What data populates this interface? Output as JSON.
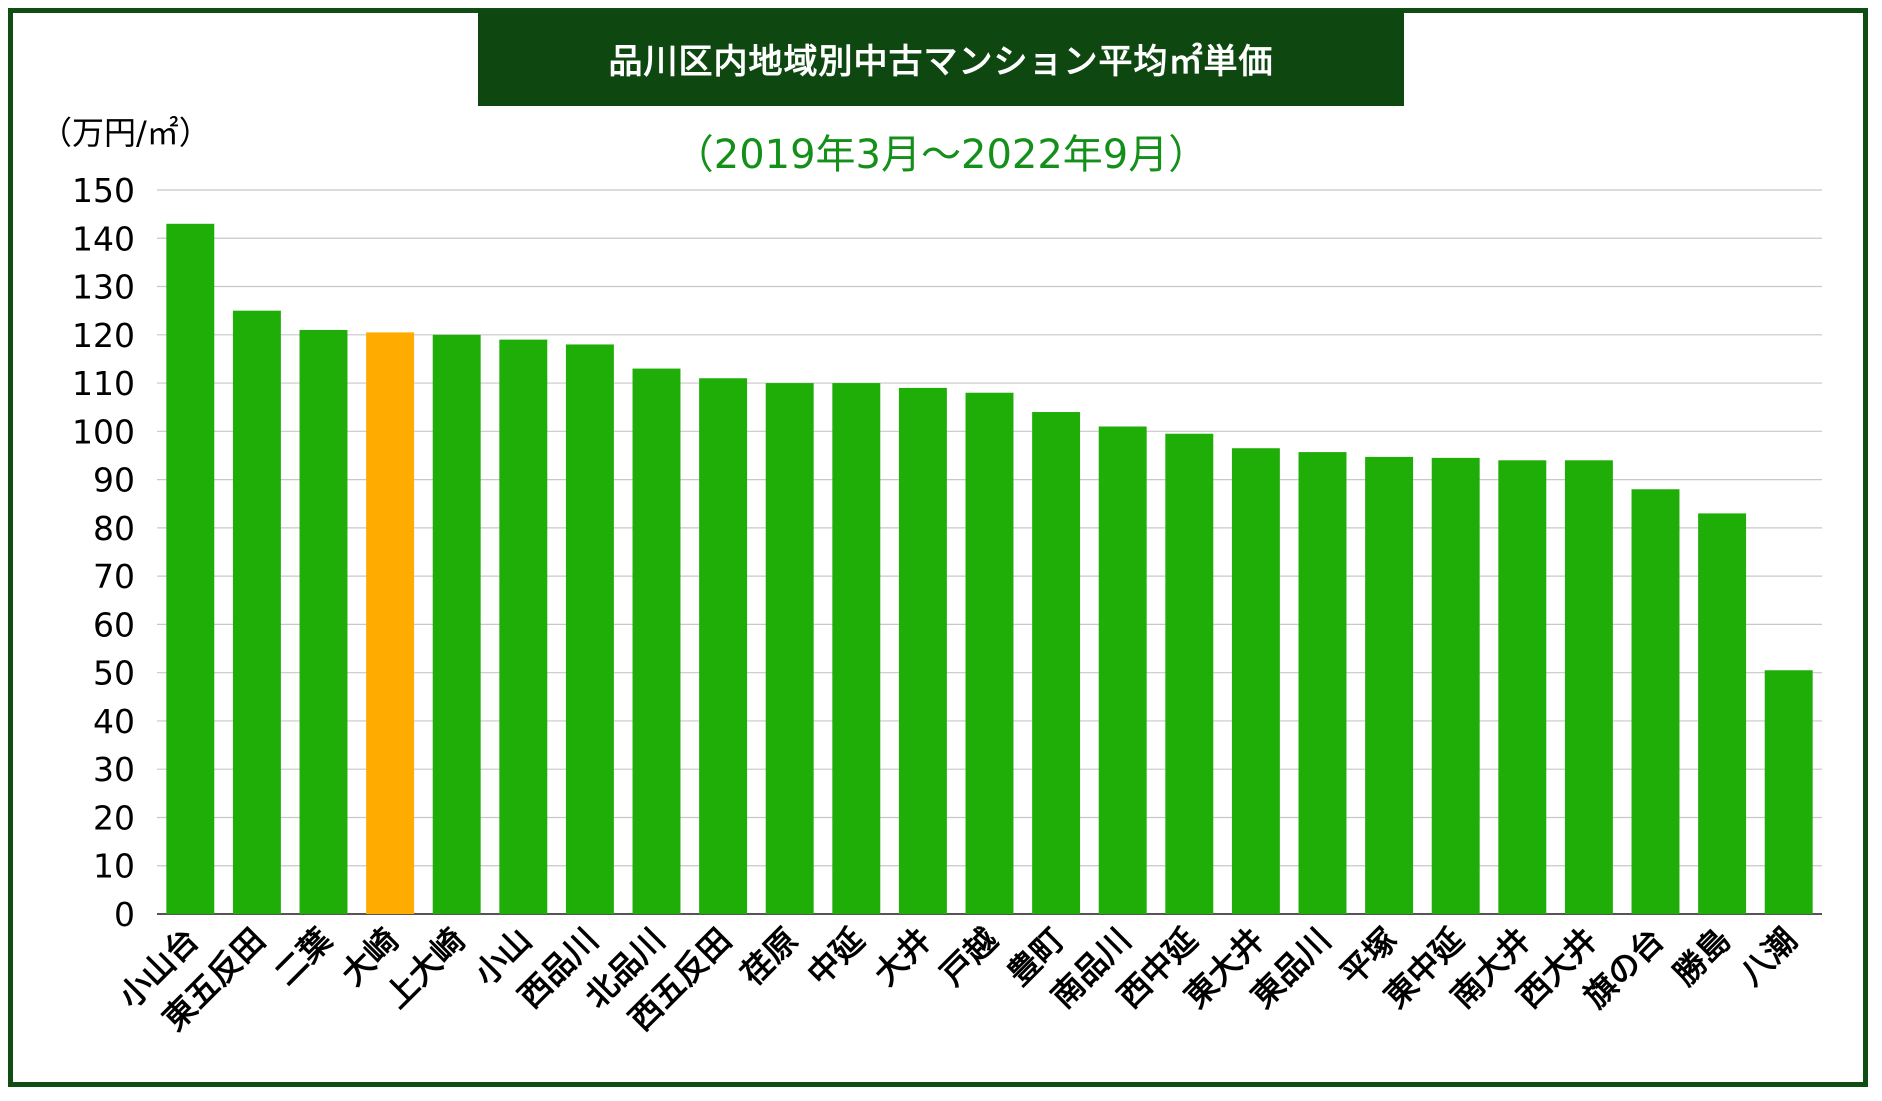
{
  "chart_data": {
    "type": "bar",
    "title": "品川区内地域別中古マンション平均㎡単価",
    "subtitle": "（2019年3月〜2022年9月）",
    "ylabel": "（万円/㎡）",
    "xlabel": "",
    "ylim": [
      0,
      150
    ],
    "yticks": [
      0,
      10,
      20,
      30,
      40,
      50,
      60,
      70,
      80,
      90,
      100,
      110,
      120,
      130,
      140,
      150
    ],
    "grid": true,
    "legend": "none",
    "categories": [
      "小山台",
      "東五反田",
      "二葉",
      "大崎",
      "上大崎",
      "小山",
      "西品川",
      "北品川",
      "西五反田",
      "荏原",
      "中延",
      "大井",
      "戸越",
      "豊町",
      "南品川",
      "西中延",
      "東大井",
      "東品川",
      "平塚",
      "東中延",
      "南大井",
      "西大井",
      "旗の台",
      "勝島",
      "八潮"
    ],
    "values": [
      143,
      125,
      121,
      120.5,
      120,
      119,
      118,
      113,
      111,
      110,
      110,
      109,
      108,
      104,
      101,
      99.5,
      96.5,
      95.7,
      94.7,
      94.5,
      94,
      94,
      88,
      83,
      50.5
    ],
    "highlight_category": "大崎",
    "colors": {
      "bar": "#1fae08",
      "highlight": "#ffab00",
      "grid": "#c8c8c8",
      "title_bg": "#0f4711",
      "subtitle": "#14901a",
      "frame": "#0f4d13"
    }
  }
}
